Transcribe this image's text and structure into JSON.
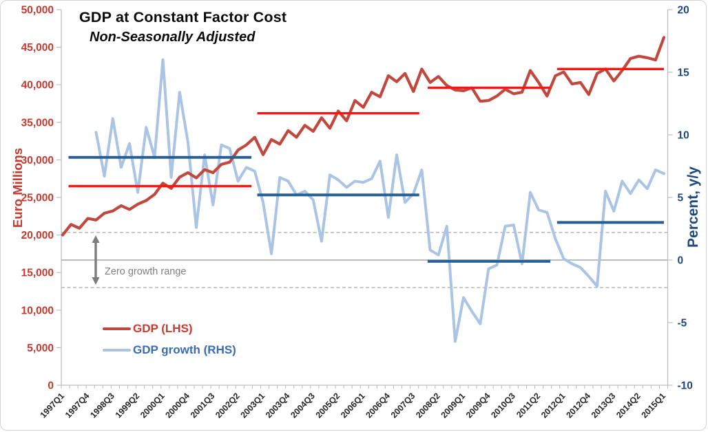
{
  "chart": {
    "title": "GDP at Constant Factor Cost",
    "subtitle": "Non-Seasonally Adjusted"
  },
  "axes": {
    "left": {
      "title": "Euro Millions",
      "color": "#c5392f",
      "tick_labels": [
        "50,000",
        "45,000",
        "40,000",
        "35,000",
        "30,000",
        "25,000",
        "20,000",
        "15,000",
        "10,000",
        "5,000",
        "0"
      ]
    },
    "right": {
      "title": "Percent, y/y",
      "color": "#1f497d",
      "tick_labels": [
        "20",
        "15",
        "10",
        "5",
        "0",
        "-5",
        "-10"
      ]
    },
    "x": {
      "tick_labels": [
        "1997Q1",
        "1997Q4",
        "1998Q3",
        "1999Q2",
        "2000Q1",
        "2000Q4",
        "2001Q3",
        "2002Q2",
        "2003Q1",
        "2003Q4",
        "2004Q3",
        "2005Q2",
        "2006Q1",
        "2006Q4",
        "2007Q3",
        "2008Q2",
        "2009Q1",
        "2009Q4",
        "2010Q3",
        "2011Q2",
        "2012Q1",
        "2012Q4",
        "2013Q3",
        "2014Q2",
        "2015Q1"
      ],
      "label_every": 3
    }
  },
  "legend": {
    "items": [
      {
        "label": "GDP (LHS)",
        "text_color": "#d0382e",
        "swatch_color": "#c0483e"
      },
      {
        "label": "GDP growth (RHS)",
        "text_color": "#3a6bb5",
        "swatch_color": "#aac4e4"
      }
    ]
  },
  "annotation": {
    "label": "Zero growth range"
  },
  "chart_data": {
    "type": "line",
    "title": "GDP at Constant Factor Cost",
    "subtitle": "Non-Seasonally Adjusted",
    "x_categories": [
      "1997Q1",
      "1997Q2",
      "1997Q3",
      "1997Q4",
      "1998Q1",
      "1998Q2",
      "1998Q3",
      "1998Q4",
      "1999Q1",
      "1999Q2",
      "1999Q3",
      "1999Q4",
      "2000Q1",
      "2000Q2",
      "2000Q3",
      "2000Q4",
      "2001Q1",
      "2001Q2",
      "2001Q3",
      "2001Q4",
      "2002Q1",
      "2002Q2",
      "2002Q3",
      "2002Q4",
      "2003Q1",
      "2003Q2",
      "2003Q3",
      "2003Q4",
      "2004Q1",
      "2004Q2",
      "2004Q3",
      "2004Q4",
      "2005Q1",
      "2005Q2",
      "2005Q3",
      "2005Q4",
      "2006Q1",
      "2006Q2",
      "2006Q3",
      "2006Q4",
      "2007Q1",
      "2007Q2",
      "2007Q3",
      "2007Q4",
      "2008Q1",
      "2008Q2",
      "2008Q3",
      "2008Q4",
      "2009Q1",
      "2009Q2",
      "2009Q3",
      "2009Q4",
      "2010Q1",
      "2010Q2",
      "2010Q3",
      "2010Q4",
      "2011Q1",
      "2011Q2",
      "2011Q3",
      "2011Q4",
      "2012Q1",
      "2012Q2",
      "2012Q3",
      "2012Q4",
      "2013Q1",
      "2013Q2",
      "2013Q3",
      "2013Q4",
      "2014Q1",
      "2014Q2",
      "2014Q3",
      "2014Q4",
      "2015Q1"
    ],
    "left_axis": {
      "label": "Euro Millions",
      "min": 0,
      "max": 50000,
      "step": 5000
    },
    "right_axis": {
      "label": "Percent, y/y",
      "min": -10,
      "max": 20,
      "step": 5
    },
    "series": [
      {
        "name": "GDP (LHS)",
        "axis": "left",
        "color": "#c0483e",
        "width": 4.2,
        "values": [
          20000,
          21400,
          20900,
          22200,
          22000,
          22900,
          23200,
          23900,
          23400,
          24100,
          24600,
          25400,
          26900,
          26200,
          27700,
          28300,
          27600,
          28700,
          28300,
          29400,
          29700,
          31300,
          32000,
          33000,
          30700,
          32700,
          32100,
          33900,
          33000,
          34600,
          33800,
          35600,
          34200,
          36500,
          35200,
          37900,
          37000,
          39000,
          38400,
          41200,
          40400,
          41500,
          39100,
          42100,
          40300,
          41100,
          39900,
          39300,
          39200,
          39600,
          37800,
          37900,
          38500,
          39400,
          38800,
          39000,
          41900,
          40300,
          38500,
          41200,
          41700,
          40100,
          40300,
          38700,
          41500,
          42100,
          40500,
          41900,
          43500,
          43800,
          43600,
          43300,
          46300
        ]
      },
      {
        "name": "GDP growth (RHS)",
        "axis": "right",
        "color": "#aac4e4",
        "width": 4,
        "values": [
          null,
          null,
          null,
          null,
          10.2,
          6.7,
          11.3,
          7.4,
          9.3,
          5.4,
          10.6,
          8.2,
          16.0,
          6.6,
          13.4,
          9.4,
          2.6,
          8.4,
          4.4,
          9.2,
          8.9,
          6.3,
          7.4,
          7.1,
          4.6,
          0.5,
          6.6,
          6.3,
          5.2,
          5.5,
          4.8,
          1.5,
          6.8,
          6.4,
          5.8,
          6.3,
          6.2,
          6.5,
          7.9,
          3.4,
          8.4,
          4.6,
          5.3,
          7.2,
          0.8,
          0.4,
          2.7,
          -6.5,
          -3.0,
          -4.1,
          -5.1,
          -0.7,
          -0.4,
          2.7,
          2.8,
          -0.3,
          5.4,
          4.0,
          3.8,
          1.7,
          0.1,
          -0.3,
          -0.6,
          -1.3,
          -2.1,
          5.5,
          3.9,
          6.3,
          5.3,
          6.4,
          5.7,
          7.2,
          6.9
        ]
      }
    ],
    "average_segments": {
      "gdp_lhs": [
        {
          "from": 0.7,
          "to": 22.6,
          "value": 26500,
          "color": "#fe1511"
        },
        {
          "from": 23.3,
          "to": 42.7,
          "value": 36200,
          "color": "#fe1511"
        },
        {
          "from": 43.7,
          "to": 58.4,
          "value": 39600,
          "color": "#fe1511"
        },
        {
          "from": 59.2,
          "to": 72.0,
          "value": 42100,
          "color": "#fe1511"
        }
      ],
      "growth_rhs": [
        {
          "from": 0.7,
          "to": 22.6,
          "value": 8.2,
          "color": "#265f94"
        },
        {
          "from": 23.3,
          "to": 42.7,
          "value": 5.2,
          "color": "#265f94"
        },
        {
          "from": 43.7,
          "to": 58.4,
          "value": -0.1,
          "color": "#265f94"
        },
        {
          "from": 59.2,
          "to": 72.0,
          "value": 3.0,
          "color": "#265f94"
        }
      ]
    },
    "zero_growth_band": {
      "upper": 2.2,
      "lower": -2.2,
      "zero_line": 0
    },
    "annotation": "Zero growth range",
    "legend_entries": [
      "GDP (LHS)",
      "GDP growth (RHS)"
    ],
    "grid": false,
    "legend_position": "inside-lower-left"
  }
}
